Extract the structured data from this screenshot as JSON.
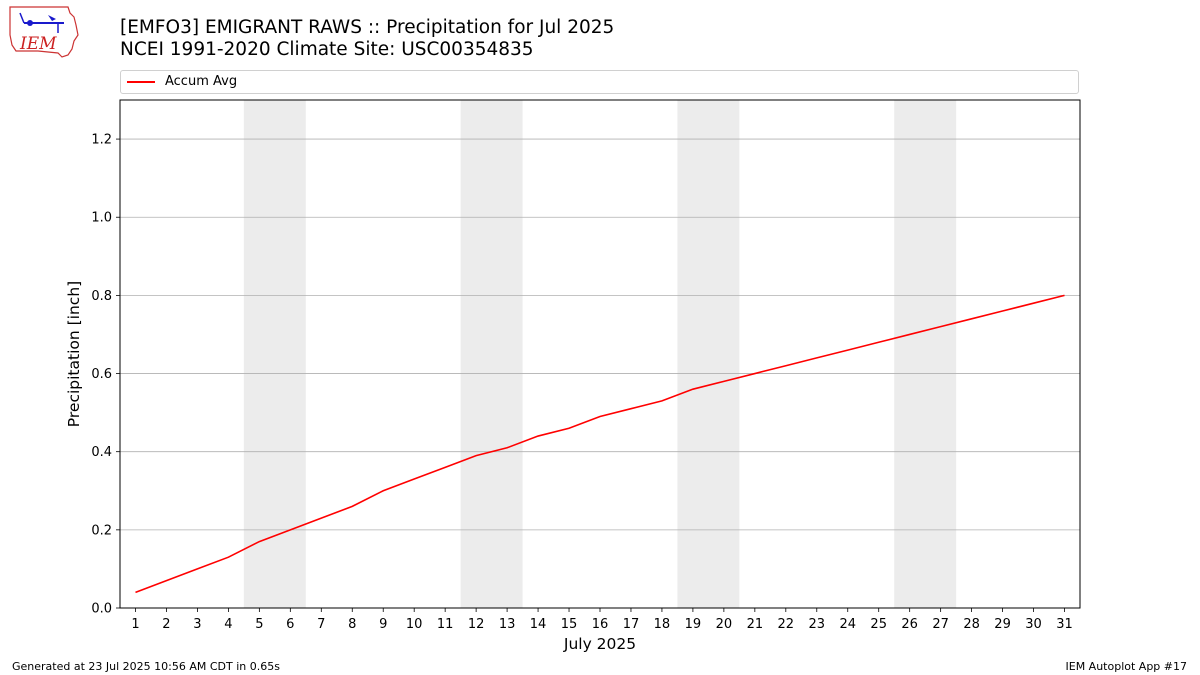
{
  "header": {
    "title_line1": "[EMFO3] EMIGRANT RAWS :: Precipitation for Jul 2025",
    "title_line2": "NCEI 1991-2020 Climate Site: USC00354835"
  },
  "logo": {
    "text": "IEM",
    "icon": "iem-logo-icon"
  },
  "footer": {
    "left": "Generated at 23 Jul 2025 10:56 AM CDT in 0.65s",
    "right": "IEM Autoplot App #17"
  },
  "colors": {
    "series_line": "#ff0000",
    "weekend_band": "#ececec",
    "grid": "#b0b0b0"
  },
  "chart_data": {
    "type": "line",
    "xlabel": "July 2025",
    "ylabel": "Precipitation [inch]",
    "xlim": [
      0.5,
      31.5
    ],
    "ylim": [
      0,
      1.3
    ],
    "y_ticks": [
      0.0,
      0.2,
      0.4,
      0.6,
      0.8,
      1.0,
      1.2
    ],
    "y_tick_labels": [
      "0.0",
      "0.2",
      "0.4",
      "0.6",
      "0.8",
      "1.0",
      "1.2"
    ],
    "x": [
      1,
      2,
      3,
      4,
      5,
      6,
      7,
      8,
      9,
      10,
      11,
      12,
      13,
      14,
      15,
      16,
      17,
      18,
      19,
      20,
      21,
      22,
      23,
      24,
      25,
      26,
      27,
      28,
      29,
      30,
      31
    ],
    "x_tick_labels": [
      "1",
      "2",
      "3",
      "4",
      "5",
      "6",
      "7",
      "8",
      "9",
      "10",
      "11",
      "12",
      "13",
      "14",
      "15",
      "16",
      "17",
      "18",
      "19",
      "20",
      "21",
      "22",
      "23",
      "24",
      "25",
      "26",
      "27",
      "28",
      "29",
      "30",
      "31"
    ],
    "grid": "horizontal",
    "legend_position": "top",
    "weekend_bands": [
      [
        4.5,
        6.5
      ],
      [
        11.5,
        13.5
      ],
      [
        18.5,
        20.5
      ],
      [
        25.5,
        27.5
      ]
    ],
    "series": [
      {
        "name": "Accum Avg",
        "color": "#ff0000",
        "values": [
          0.04,
          0.07,
          0.1,
          0.13,
          0.17,
          0.2,
          0.23,
          0.26,
          0.3,
          0.33,
          0.36,
          0.39,
          0.41,
          0.44,
          0.46,
          0.49,
          0.51,
          0.53,
          0.56,
          0.58,
          0.6,
          0.62,
          0.64,
          0.66,
          0.68,
          0.7,
          0.72,
          0.74,
          0.76,
          0.78,
          0.8
        ]
      }
    ]
  }
}
